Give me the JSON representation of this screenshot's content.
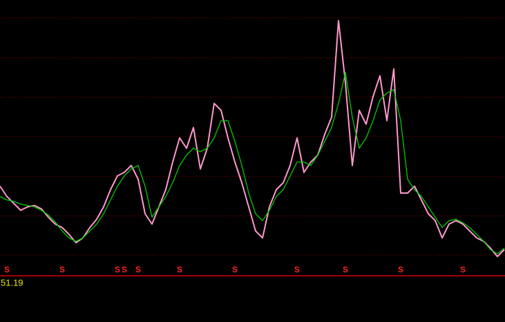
{
  "chart_data": {
    "type": "line",
    "x": [
      0,
      1,
      2,
      3,
      4,
      5,
      6,
      7,
      8,
      9,
      10,
      11,
      12,
      13,
      14,
      15,
      16,
      17,
      18,
      19,
      20,
      21,
      22,
      23,
      24,
      25,
      26,
      27,
      28,
      29,
      30,
      31,
      32,
      33,
      34,
      35,
      36,
      37,
      38,
      39,
      40,
      41,
      42,
      43,
      44,
      45,
      46,
      47,
      48,
      49,
      50,
      51,
      52,
      53,
      54,
      55,
      56,
      57,
      58,
      59,
      60,
      61,
      62,
      63,
      64,
      65,
      66,
      67,
      68,
      69,
      70,
      71,
      72,
      73
    ],
    "xlim": [
      0,
      73
    ],
    "series": [
      {
        "color": "#ff99cc",
        "values": [
          130,
          115,
          105,
          95,
          100,
          102,
          97,
          85,
          75,
          70,
          60,
          48,
          55,
          70,
          82,
          100,
          125,
          145,
          150,
          160,
          140,
          90,
          75,
          100,
          125,
          165,
          200,
          185,
          215,
          155,
          185,
          250,
          240,
          200,
          165,
          135,
          100,
          65,
          55,
          100,
          125,
          135,
          160,
          200,
          150,
          165,
          175,
          205,
          230,
          370,
          280,
          160,
          240,
          220,
          260,
          290,
          225,
          300,
          120,
          120,
          130,
          110,
          90,
          80,
          55,
          75,
          80,
          75,
          65,
          55,
          50,
          40,
          28,
          38
        ]
      },
      {
        "color": "#00cc00",
        "values": [
          115,
          110,
          108,
          104,
          102,
          100,
          95,
          88,
          78,
          65,
          55,
          50,
          55,
          65,
          75,
          90,
          110,
          130,
          145,
          155,
          160,
          130,
          85,
          100,
          115,
          135,
          160,
          175,
          185,
          180,
          185,
          200,
          225,
          225,
          195,
          160,
          120,
          90,
          80,
          95,
          115,
          125,
          145,
          165,
          165,
          160,
          175,
          195,
          215,
          250,
          295,
          230,
          185,
          200,
          225,
          255,
          265,
          270,
          225,
          140,
          125,
          115,
          100,
          85,
          70,
          80,
          82,
          77,
          70,
          60,
          50,
          38,
          32,
          40
        ]
      }
    ],
    "ylim": [
      0,
      400
    ],
    "yticks": [
      30,
      87,
      144,
      202,
      259,
      316,
      374
    ],
    "grid": true,
    "grid_color": "#aa0000",
    "baseline_color": "#dd0000",
    "signals": {
      "label": "S",
      "color": "#ff2222",
      "x": [
        1,
        9,
        17,
        18,
        20,
        26,
        34,
        43,
        50,
        58,
        67
      ]
    },
    "readout": {
      "text": "51.19",
      "color": "#e8e800"
    }
  }
}
